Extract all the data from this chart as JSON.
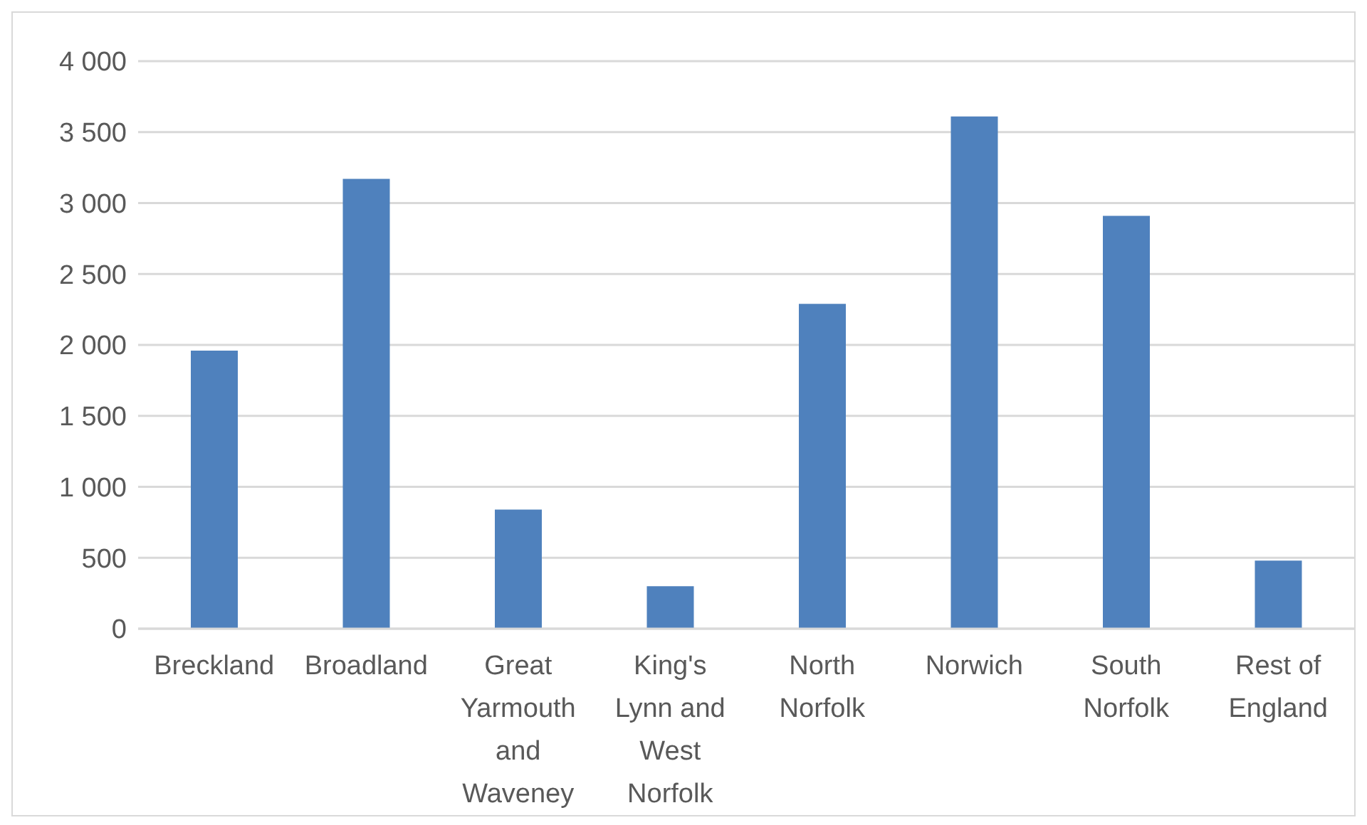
{
  "chart_data": {
    "type": "bar",
    "categories": [
      "Breckland",
      "Broadland",
      "Great Yarmouth and Waveney",
      "King's Lynn and West Norfolk",
      "North Norfolk",
      "Norwich",
      "South Norfolk",
      "Rest of England"
    ],
    "values": [
      1960,
      3170,
      840,
      300,
      2290,
      3610,
      2910,
      480
    ],
    "color": "#4f81bd",
    "ylim": [
      0,
      4000
    ],
    "yticks": [
      0,
      {
        "value": 500,
        "label": "500"
      },
      {
        "value": 1000,
        "label": "1 000"
      },
      {
        "value": 1500,
        "label": "1 500"
      },
      {
        "value": 2000,
        "label": "2 000"
      },
      {
        "value": 2500,
        "label": "2 500"
      },
      {
        "value": 3000,
        "label": "3 000"
      },
      {
        "value": 3500,
        "label": "3 500"
      },
      {
        "value": 4000,
        "label": "4 000"
      }
    ],
    "grid": "y"
  }
}
